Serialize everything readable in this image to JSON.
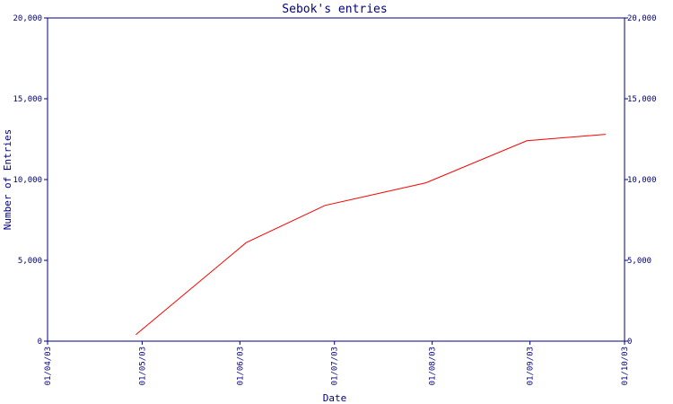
{
  "chart_data": {
    "type": "line",
    "title": "Sebok's entries",
    "xlabel": "Date",
    "ylabel": "Number of Entries",
    "x_ticks": [
      "01/04/03",
      "01/05/03",
      "01/06/03",
      "01/07/03",
      "01/08/03",
      "01/09/03",
      "01/10/03"
    ],
    "y_ticks": [
      "0",
      "5,000",
      "10,000",
      "15,000",
      "20,000"
    ],
    "ylim": [
      0,
      20000
    ],
    "xlim": [
      "2003-04-01",
      "2003-10-01"
    ],
    "grid": false,
    "series": [
      {
        "x": [
          "2003-04-29",
          "2003-06-03",
          "2003-06-28",
          "2003-07-30",
          "2003-08-31",
          "2003-09-25"
        ],
        "y": [
          400,
          6100,
          8400,
          9800,
          12400,
          12800
        ]
      }
    ]
  },
  "colors": {
    "axes": "#000080",
    "text": "#000080",
    "series": "#ff0000"
  }
}
